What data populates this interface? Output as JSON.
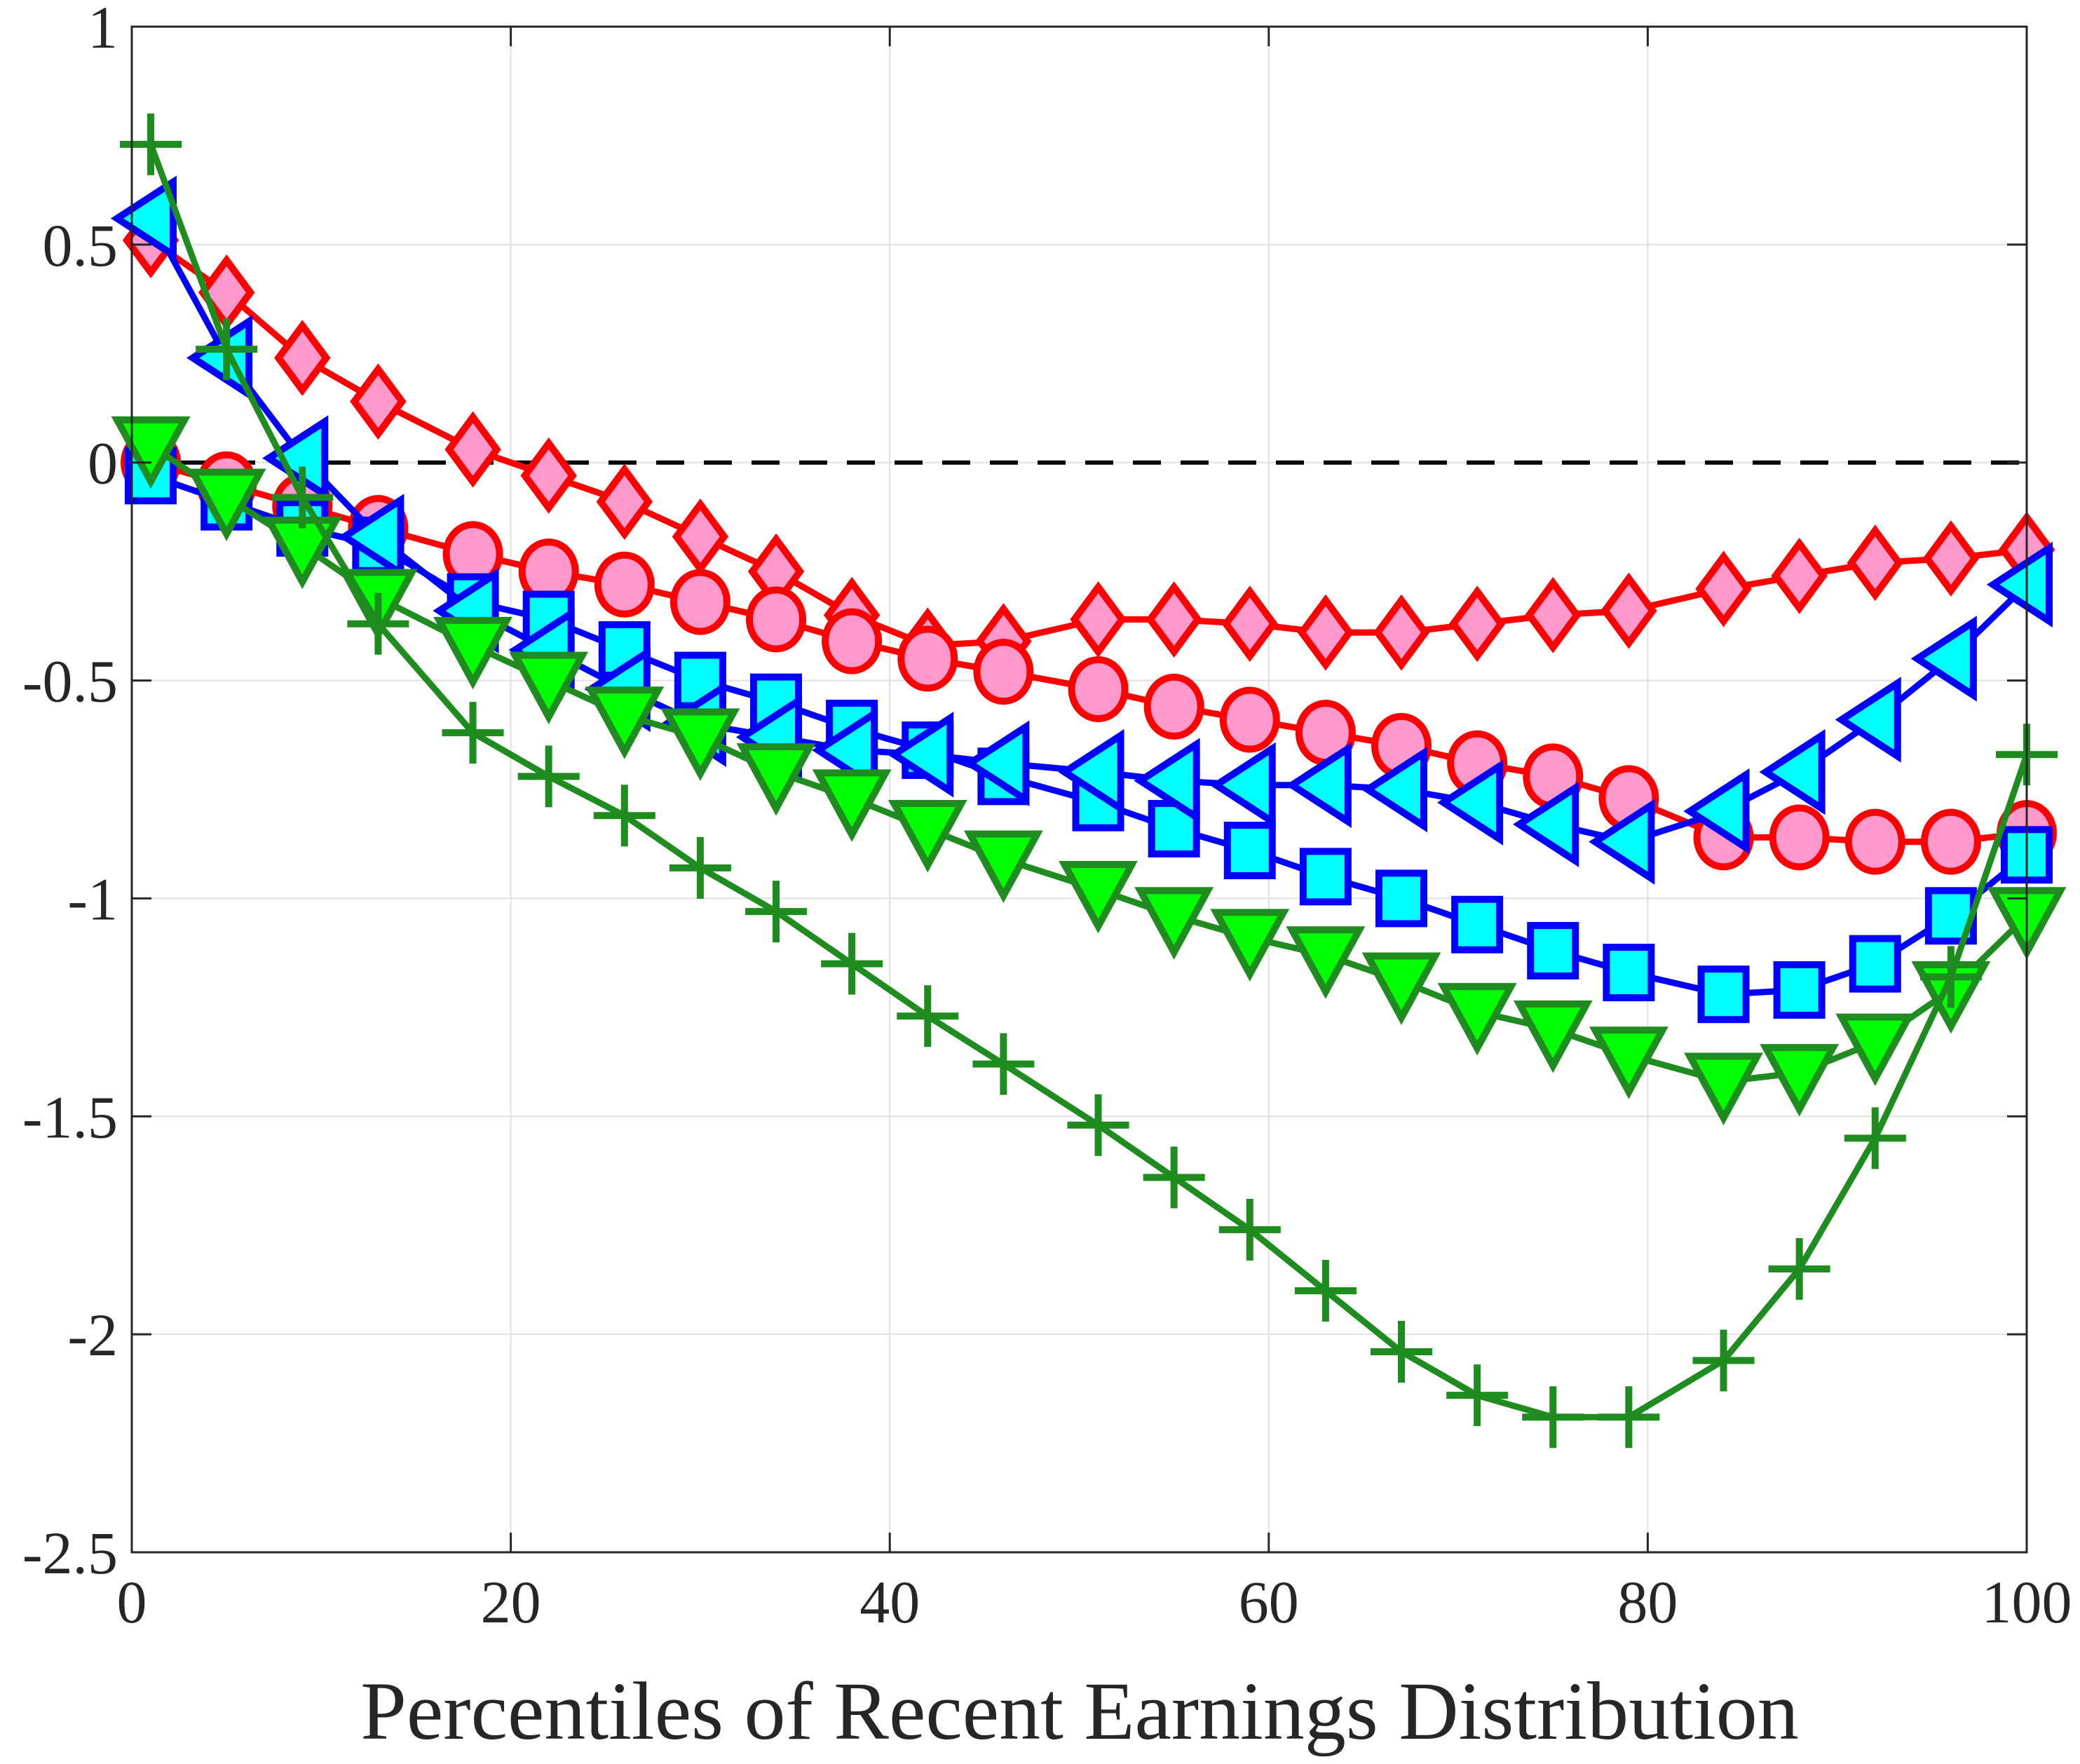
{
  "chart_data": {
    "type": "line",
    "title": "",
    "xlabel": "Percentiles of Recent Earnings Distribution",
    "ylabel": "",
    "xlim": [
      0,
      100
    ],
    "ylim": [
      -2.5,
      1
    ],
    "xticks": [
      0,
      20,
      40,
      60,
      80,
      100
    ],
    "yticks": [
      1,
      0.5,
      0,
      -0.5,
      -1,
      -1.5,
      -2,
      -2.5
    ],
    "ytick_labels": [
      "1",
      "0.5",
      "0",
      "-0.5",
      "-1",
      "-1.5",
      "-2",
      "-2.5"
    ],
    "xtick_labels": [
      "0",
      "20",
      "40",
      "60",
      "80",
      "100"
    ],
    "grid": true,
    "legend": null,
    "reference_line": {
      "y": 0,
      "style": "dashed",
      "color": "#000000"
    },
    "x": [
      1,
      5,
      9,
      13,
      18,
      22,
      26,
      30,
      34,
      38,
      42,
      46,
      51,
      55,
      59,
      63,
      67,
      71,
      75,
      79,
      84,
      88,
      92,
      96,
      100
    ],
    "series": [
      {
        "name": "diamond",
        "marker": "diamond",
        "line_color": "#ff0000",
        "fill": "#ff99cc",
        "values": [
          0.51,
          0.39,
          0.24,
          0.14,
          0.03,
          -0.03,
          -0.09,
          -0.17,
          -0.25,
          -0.35,
          -0.42,
          -0.41,
          -0.36,
          -0.36,
          -0.37,
          -0.39,
          -0.39,
          -0.37,
          -0.35,
          -0.34,
          -0.29,
          -0.26,
          -0.23,
          -0.22,
          -0.2
        ]
      },
      {
        "name": "circle",
        "marker": "circle",
        "line_color": "#ff0000",
        "fill": "#ff99cc",
        "values": [
          0.0,
          -0.05,
          -0.1,
          -0.15,
          -0.21,
          -0.25,
          -0.28,
          -0.32,
          -0.36,
          -0.41,
          -0.45,
          -0.48,
          -0.52,
          -0.56,
          -0.59,
          -0.62,
          -0.65,
          -0.69,
          -0.72,
          -0.77,
          -0.86,
          -0.86,
          -0.87,
          -0.87,
          -0.85
        ]
      },
      {
        "name": "square",
        "marker": "square",
        "line_color": "#0000ff",
        "fill": "#00ffff",
        "values": [
          -0.03,
          -0.09,
          -0.15,
          -0.19,
          -0.32,
          -0.36,
          -0.43,
          -0.5,
          -0.55,
          -0.61,
          -0.66,
          -0.72,
          -0.78,
          -0.84,
          -0.89,
          -0.95,
          -1.0,
          -1.06,
          -1.12,
          -1.17,
          -1.22,
          -1.21,
          -1.15,
          -1.04,
          -0.9
        ]
      },
      {
        "name": "left-triangle",
        "marker": "triangle-left",
        "line_color": "#0000ff",
        "fill": "#00ffff",
        "values": [
          0.56,
          0.24,
          0.01,
          -0.17,
          -0.34,
          -0.43,
          -0.52,
          -0.6,
          -0.63,
          -0.66,
          -0.67,
          -0.69,
          -0.71,
          -0.73,
          -0.74,
          -0.74,
          -0.75,
          -0.78,
          -0.83,
          -0.87,
          -0.8,
          -0.71,
          -0.59,
          -0.45,
          -0.28
        ]
      },
      {
        "name": "down-triangle",
        "marker": "triangle-down",
        "line_color": "#1e8c1e",
        "fill": "#00ff00",
        "values": [
          0.04,
          -0.08,
          -0.19,
          -0.31,
          -0.42,
          -0.5,
          -0.58,
          -0.63,
          -0.71,
          -0.77,
          -0.84,
          -0.91,
          -0.98,
          -1.04,
          -1.09,
          -1.13,
          -1.19,
          -1.26,
          -1.3,
          -1.36,
          -1.42,
          -1.4,
          -1.33,
          -1.21,
          -1.04
        ]
      },
      {
        "name": "plus",
        "marker": "plus",
        "line_color": "#1e8c1e",
        "fill": "none",
        "values": [
          0.73,
          0.26,
          -0.08,
          -0.37,
          -0.62,
          -0.72,
          -0.81,
          -0.93,
          -1.03,
          -1.15,
          -1.27,
          -1.38,
          -1.52,
          -1.64,
          -1.76,
          -1.9,
          -2.04,
          -2.14,
          -2.19,
          -2.19,
          -2.06,
          -1.85,
          -1.55,
          -1.18,
          -0.67
        ]
      }
    ]
  }
}
